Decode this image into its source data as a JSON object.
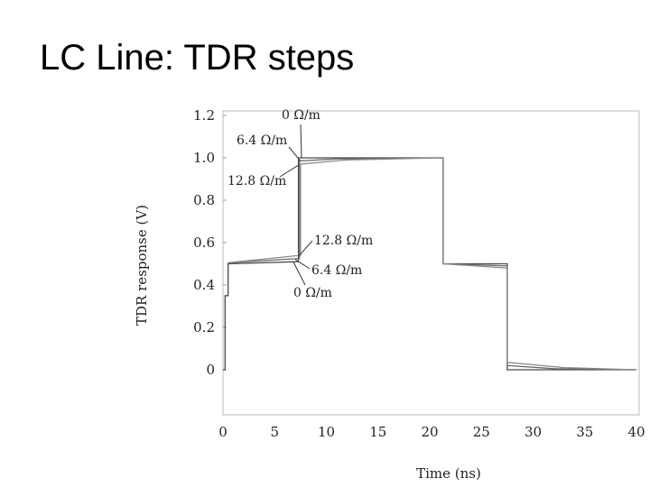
{
  "slide": {
    "title": "LC Line: TDR steps"
  },
  "chart_data": {
    "type": "line",
    "title": "",
    "xlabel": "Time (ns)",
    "ylabel": "TDR response (V)",
    "xlim": [
      0,
      40
    ],
    "ylim": [
      0,
      1.2
    ],
    "x_ticks": [
      "0",
      "5",
      "10",
      "15",
      "20",
      "25",
      "30",
      "35",
      "40"
    ],
    "y_ticks": [
      "0",
      "0.2",
      "0.4",
      "0.6",
      "0.8",
      "1.0",
      "1.2"
    ],
    "grid": false,
    "series": [
      {
        "label": "0 Ω/m",
        "color": "#4a4a4a",
        "x": [
          0,
          0.2,
          0.2,
          0.5,
          0.5,
          7.3,
          7.3,
          21.3,
          21.3,
          27.5,
          27.5,
          40
        ],
        "y": [
          0,
          0,
          0.35,
          0.35,
          0.5,
          0.51,
          1.0,
          1.0,
          0.5,
          0.5,
          0,
          0
        ]
      },
      {
        "label": "6.4 Ω/m",
        "color": "#6a6a6a",
        "x": [
          0.5,
          7.4,
          7.4,
          11,
          21.3,
          21.3,
          27.5,
          27.5,
          32,
          40
        ],
        "y": [
          0.505,
          0.525,
          0.985,
          0.995,
          1.0,
          0.5,
          0.49,
          0.02,
          0.005,
          0
        ],
        "annotation_labels": [
          "6.4 Ω/m",
          "6.4 Ω/m"
        ]
      },
      {
        "label": "12.8 Ω/m",
        "color": "#8a8a8a",
        "x": [
          0.5,
          7.5,
          7.5,
          12,
          21.3,
          21.3,
          27.5,
          27.5,
          33,
          40
        ],
        "y": [
          0.505,
          0.54,
          0.97,
          0.99,
          1.0,
          0.5,
          0.48,
          0.035,
          0.01,
          0
        ],
        "annotation_labels": [
          "12.8 Ω/m",
          "12.8 Ω/m"
        ]
      }
    ],
    "annotations": [
      {
        "text": "0 Ω/m",
        "at_x": 7.6,
        "at_y": 1.0
      },
      {
        "text": "6.4 Ω/m",
        "at_x": 7.5,
        "at_y": 0.985
      },
      {
        "text": "12.8 Ω/m",
        "at_x": 7.3,
        "at_y": 0.965
      },
      {
        "text": "12.8 Ω/m",
        "at_x": 7.3,
        "at_y": 0.535
      },
      {
        "text": "6.4 Ω/m",
        "at_x": 7.0,
        "at_y": 0.52
      },
      {
        "text": "0 Ω/m",
        "at_x": 6.8,
        "at_y": 0.51
      }
    ]
  }
}
